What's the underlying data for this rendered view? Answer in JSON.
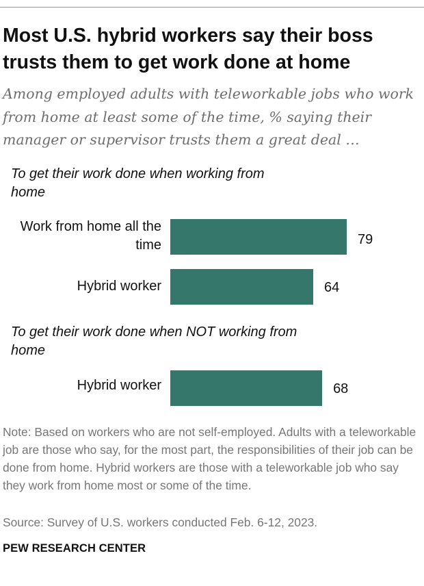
{
  "title": "Most U.S. hybrid workers say their boss trusts them to get work done at home",
  "subtitle": "Among employed adults with teleworkable jobs who work from home at least some of the time, % saying their manager or supervisor trusts them a great deal …",
  "colors": {
    "bar": "#35776a",
    "note_text": "#767676"
  },
  "chart_data": {
    "type": "bar",
    "orientation": "horizontal",
    "groups": [
      {
        "label": "To get their work done when working from home",
        "categories": [
          "Work from home all the time",
          "Hybrid worker"
        ],
        "values": [
          79,
          64
        ]
      },
      {
        "label": "To get their work done when NOT working from home",
        "categories": [
          "Hybrid worker"
        ],
        "values": [
          68
        ]
      }
    ],
    "xlim": [
      0,
      100
    ],
    "grid": false
  },
  "note": "Note: Based on workers who are not self-employed. Adults with a teleworkable job are those who say, for the most part, the responsibilities of their job can be done from home. Hybrid workers are those with a teleworkable job who say they work from home most or some of the time.",
  "source": "Source: Survey of U.S. workers conducted Feb. 6-12, 2023.",
  "brand": "PEW RESEARCH CENTER"
}
